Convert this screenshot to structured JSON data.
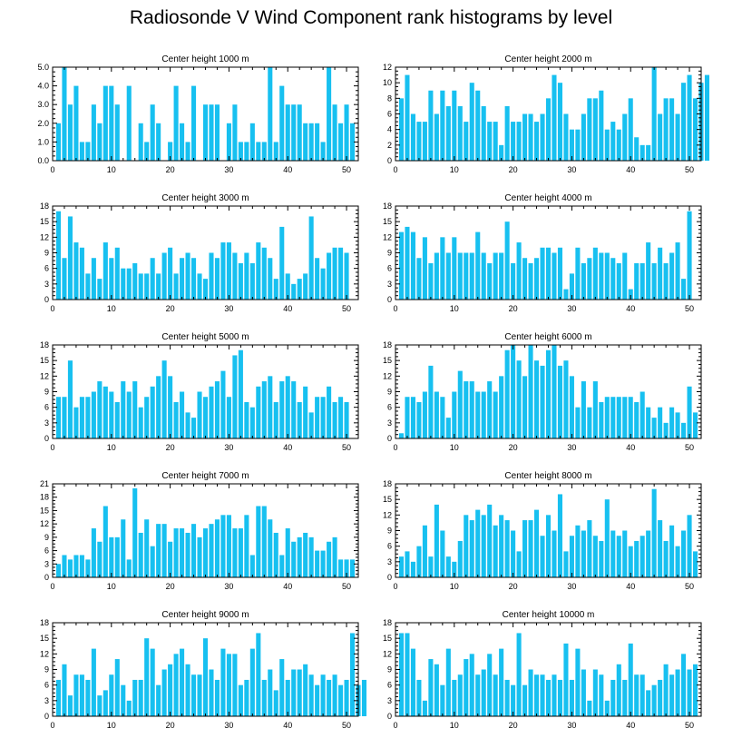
{
  "title": "Radiosonde V Wind Component rank histograms by level",
  "chart_data": [
    {
      "type": "bar",
      "title": "Center height 1000 m",
      "ylim": [
        0,
        5
      ],
      "yticks": [
        "0.0",
        "1.0",
        "2.0",
        "3.0",
        "4.0",
        "5.0"
      ],
      "xlim": [
        0,
        52
      ],
      "xticks": [
        "0",
        "10",
        "20",
        "30",
        "40",
        "50"
      ],
      "values": [
        2,
        5,
        3,
        4,
        1,
        1,
        3,
        2,
        4,
        4,
        3,
        0,
        4,
        0,
        2,
        1,
        3,
        2,
        0,
        1,
        4,
        2,
        1,
        4,
        0,
        3,
        3,
        3,
        0,
        2,
        3,
        1,
        1,
        2,
        1,
        1,
        5,
        1,
        4,
        3,
        3,
        3,
        2,
        2,
        2,
        1,
        5,
        3,
        2,
        3,
        2
      ]
    },
    {
      "type": "bar",
      "title": "Center height 2000 m",
      "ylim": [
        0,
        12
      ],
      "yticks": [
        "0",
        "2",
        "4",
        "6",
        "8",
        "10",
        "12"
      ],
      "xlim": [
        0,
        52
      ],
      "xticks": [
        "0",
        "10",
        "20",
        "30",
        "40",
        "50"
      ],
      "values": [
        8,
        11,
        6,
        5,
        5,
        9,
        6,
        9,
        7,
        9,
        7,
        5,
        10,
        9,
        7,
        5,
        5,
        2,
        7,
        5,
        5,
        6,
        6,
        5,
        6,
        8,
        11,
        10,
        6,
        4,
        4,
        6,
        8,
        8,
        9,
        4,
        5,
        4,
        6,
        8,
        3,
        2,
        2,
        12,
        6,
        8,
        8,
        6,
        10,
        11,
        8,
        10,
        11
      ]
    },
    {
      "type": "bar",
      "title": "Center height 3000 m",
      "ylim": [
        0,
        18
      ],
      "yticks": [
        "0",
        "3",
        "6",
        "9",
        "12",
        "15",
        "18"
      ],
      "xlim": [
        0,
        52
      ],
      "xticks": [
        "0",
        "10",
        "20",
        "30",
        "40",
        "50"
      ],
      "values": [
        17,
        8,
        16,
        11,
        10,
        5,
        8,
        4,
        11,
        8,
        10,
        6,
        6,
        7,
        5,
        5,
        8,
        5,
        9,
        10,
        5,
        8,
        9,
        8,
        5,
        4,
        9,
        8,
        11,
        11,
        9,
        7,
        9,
        7,
        11,
        10,
        8,
        4,
        14,
        5,
        3,
        4,
        5,
        16,
        8,
        6,
        9,
        10,
        10,
        9
      ]
    },
    {
      "type": "bar",
      "title": "Center height 4000 m",
      "ylim": [
        0,
        18
      ],
      "yticks": [
        "0",
        "3",
        "6",
        "9",
        "12",
        "15",
        "18"
      ],
      "xlim": [
        0,
        52
      ],
      "xticks": [
        "0",
        "10",
        "20",
        "30",
        "40",
        "50"
      ],
      "values": [
        13,
        14,
        13,
        8,
        12,
        7,
        9,
        12,
        9,
        12,
        9,
        9,
        9,
        13,
        9,
        7,
        9,
        9,
        15,
        7,
        11,
        8,
        7,
        8,
        10,
        10,
        9,
        10,
        2,
        5,
        10,
        7,
        8,
        10,
        9,
        9,
        8,
        7,
        9,
        2,
        7,
        7,
        11,
        7,
        10,
        7,
        9,
        11,
        4,
        17
      ]
    },
    {
      "type": "bar",
      "title": "Center height 5000 m",
      "ylim": [
        0,
        18
      ],
      "yticks": [
        "0",
        "3",
        "6",
        "9",
        "12",
        "15",
        "18"
      ],
      "xlim": [
        0,
        52
      ],
      "xticks": [
        "0",
        "10",
        "20",
        "30",
        "40",
        "50"
      ],
      "values": [
        8,
        8,
        15,
        6,
        8,
        8,
        9,
        11,
        10,
        9,
        7,
        11,
        9,
        11,
        6,
        8,
        10,
        12,
        15,
        12,
        7,
        9,
        5,
        4,
        9,
        8,
        10,
        11,
        13,
        8,
        16,
        17,
        7,
        6,
        10,
        11,
        12,
        7,
        11,
        12,
        11,
        7,
        10,
        5,
        8,
        8,
        10,
        7,
        8,
        7
      ]
    },
    {
      "type": "bar",
      "title": "Center height 6000 m",
      "ylim": [
        0,
        18
      ],
      "yticks": [
        "0",
        "3",
        "6",
        "9",
        "12",
        "15",
        "18"
      ],
      "xlim": [
        0,
        52
      ],
      "xticks": [
        "0",
        "10",
        "20",
        "30",
        "40",
        "50"
      ],
      "values": [
        1,
        8,
        8,
        7,
        9,
        14,
        9,
        8,
        4,
        9,
        13,
        11,
        11,
        9,
        9,
        11,
        9,
        12,
        17,
        18,
        15,
        12,
        18,
        15,
        14,
        17,
        18,
        14,
        15,
        12,
        6,
        11,
        6,
        11,
        7,
        8,
        8,
        8,
        8,
        8,
        7,
        9,
        6,
        4,
        6,
        3,
        6,
        5,
        3,
        10,
        5
      ]
    },
    {
      "type": "bar",
      "title": "Center height 7000 m",
      "ylim": [
        0,
        21
      ],
      "yticks": [
        "0",
        "3",
        "6",
        "9",
        "12",
        "15",
        "18",
        "21"
      ],
      "xlim": [
        0,
        52
      ],
      "xticks": [
        "0",
        "10",
        "20",
        "30",
        "40",
        "50"
      ],
      "values": [
        3,
        5,
        4,
        5,
        5,
        4,
        11,
        8,
        16,
        9,
        9,
        13,
        4,
        20,
        10,
        13,
        7,
        12,
        12,
        8,
        11,
        11,
        10,
        12,
        9,
        11,
        12,
        13,
        14,
        14,
        11,
        11,
        14,
        5,
        16,
        16,
        13,
        10,
        5,
        11,
        8,
        9,
        10,
        9,
        6,
        6,
        8,
        9,
        4,
        4,
        4
      ]
    },
    {
      "type": "bar",
      "title": "Center height 8000 m",
      "ylim": [
        0,
        18
      ],
      "yticks": [
        "0",
        "3",
        "6",
        "9",
        "12",
        "15",
        "18"
      ],
      "xlim": [
        0,
        52
      ],
      "xticks": [
        "0",
        "10",
        "20",
        "30",
        "40",
        "50"
      ],
      "values": [
        4,
        5,
        3,
        6,
        10,
        4,
        14,
        9,
        4,
        3,
        7,
        12,
        11,
        13,
        12,
        14,
        10,
        12,
        11,
        9,
        5,
        11,
        11,
        13,
        8,
        12,
        9,
        16,
        5,
        8,
        10,
        9,
        11,
        8,
        7,
        15,
        9,
        8,
        9,
        6,
        7,
        8,
        9,
        17,
        11,
        7,
        10,
        6,
        9,
        12,
        5
      ]
    },
    {
      "type": "bar",
      "title": "Center height 9000 m",
      "ylim": [
        0,
        18
      ],
      "yticks": [
        "0",
        "3",
        "6",
        "9",
        "12",
        "15",
        "18"
      ],
      "xlim": [
        0,
        52
      ],
      "xticks": [
        "0",
        "10",
        "20",
        "30",
        "40",
        "50"
      ],
      "values": [
        7,
        10,
        4,
        8,
        8,
        7,
        13,
        4,
        5,
        8,
        11,
        6,
        3,
        7,
        7,
        15,
        13,
        6,
        9,
        10,
        12,
        13,
        10,
        8,
        8,
        15,
        9,
        7,
        13,
        12,
        12,
        6,
        7,
        13,
        16,
        7,
        9,
        5,
        11,
        7,
        9,
        9,
        10,
        8,
        6,
        8,
        7,
        8,
        6,
        7,
        16,
        6,
        7
      ]
    },
    {
      "type": "bar",
      "title": "Center height 10000 m",
      "ylim": [
        0,
        18
      ],
      "yticks": [
        "0",
        "3",
        "6",
        "9",
        "12",
        "15",
        "18"
      ],
      "xlim": [
        0,
        52
      ],
      "xticks": [
        "0",
        "10",
        "20",
        "30",
        "40",
        "50"
      ],
      "values": [
        16,
        16,
        13,
        7,
        3,
        11,
        10,
        6,
        13,
        7,
        8,
        11,
        12,
        8,
        9,
        12,
        8,
        13,
        7,
        6,
        16,
        6,
        9,
        8,
        8,
        7,
        8,
        7,
        14,
        7,
        13,
        9,
        3,
        9,
        8,
        3,
        7,
        10,
        7,
        14,
        8,
        8,
        5,
        6,
        7,
        10,
        8,
        9,
        12,
        9,
        10
      ]
    }
  ]
}
